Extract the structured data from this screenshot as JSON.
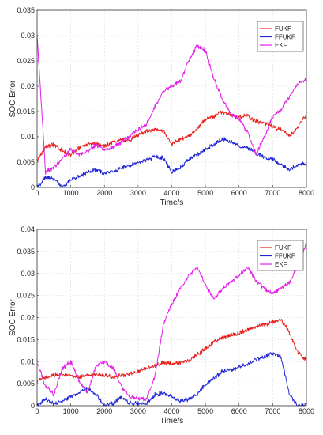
{
  "chart_data": [
    {
      "type": "line",
      "xlabel": "Time/s",
      "ylabel": "SOC Error",
      "xlim": [
        0,
        8000
      ],
      "ylim": [
        0,
        0.035
      ],
      "xticks": [
        "0",
        "1000",
        "2000",
        "3000",
        "4000",
        "5000",
        "6000",
        "7000",
        "8000"
      ],
      "yticks": [
        "0",
        "0.005",
        "0.01",
        "0.015",
        "0.02",
        "0.025",
        "0.03",
        "0.035"
      ],
      "grid": true,
      "legend": "top-right",
      "x": [
        0,
        250,
        500,
        750,
        1000,
        1250,
        1500,
        1750,
        2000,
        2250,
        2500,
        2750,
        3000,
        3250,
        3500,
        3750,
        4000,
        4250,
        4500,
        4750,
        5000,
        5250,
        5500,
        5750,
        6000,
        6250,
        6500,
        6750,
        7000,
        7250,
        7500,
        7750,
        8000
      ],
      "series": [
        {
          "name": "FUKF",
          "color": "#e8201c",
          "values": [
            0.0055,
            0.008,
            0.0085,
            0.0072,
            0.0065,
            0.0078,
            0.0085,
            0.0088,
            0.0082,
            0.009,
            0.0095,
            0.0092,
            0.0105,
            0.011,
            0.0115,
            0.0112,
            0.0085,
            0.0095,
            0.01,
            0.0115,
            0.0135,
            0.014,
            0.015,
            0.0143,
            0.0138,
            0.0142,
            0.013,
            0.0128,
            0.012,
            0.0115,
            0.01,
            0.012,
            0.0145
          ]
        },
        {
          "name": "FFUKF",
          "color": "#1f26d6",
          "values": [
            0.0,
            0.002,
            0.0018,
            0.0,
            0.0015,
            0.0022,
            0.003,
            0.0035,
            0.0028,
            0.0032,
            0.0038,
            0.0042,
            0.005,
            0.0055,
            0.006,
            0.0058,
            0.003,
            0.004,
            0.0055,
            0.0065,
            0.0075,
            0.0085,
            0.0095,
            0.009,
            0.0082,
            0.0078,
            0.0068,
            0.006,
            0.0055,
            0.0045,
            0.0035,
            0.0045,
            0.0048
          ]
        },
        {
          "name": "EKF",
          "color": "#e51ee8",
          "values": [
            0.03,
            0.003,
            0.004,
            0.0055,
            0.0075,
            0.0065,
            0.007,
            0.0085,
            0.0075,
            0.008,
            0.009,
            0.01,
            0.0115,
            0.0125,
            0.016,
            0.019,
            0.02,
            0.021,
            0.025,
            0.028,
            0.027,
            0.0215,
            0.0175,
            0.0145,
            0.0135,
            0.011,
            0.0065,
            0.01,
            0.014,
            0.0155,
            0.018,
            0.0205,
            0.0215
          ]
        }
      ]
    },
    {
      "type": "line",
      "xlabel": "Time/s",
      "ylabel": "SOC Error",
      "xlim": [
        0,
        8000
      ],
      "ylim": [
        0,
        0.04
      ],
      "xticks": [
        "0",
        "1000",
        "2000",
        "3000",
        "4000",
        "5000",
        "6000",
        "7000",
        "8000"
      ],
      "yticks": [
        "0",
        "0.005",
        "0.01",
        "0.015",
        "0.02",
        "0.025",
        "0.03",
        "0.035",
        "0.04"
      ],
      "grid": true,
      "legend": "top-right",
      "x": [
        0,
        250,
        500,
        750,
        1000,
        1250,
        1500,
        1750,
        2000,
        2250,
        2500,
        2750,
        3000,
        3250,
        3500,
        3750,
        4000,
        4250,
        4500,
        4750,
        5000,
        5250,
        5500,
        5750,
        6000,
        6250,
        6500,
        6750,
        7000,
        7250,
        7500,
        7750,
        8000
      ],
      "series": [
        {
          "name": "FUKF",
          "color": "#e8201c",
          "values": [
            0.0055,
            0.0065,
            0.007,
            0.0072,
            0.0068,
            0.0065,
            0.007,
            0.0072,
            0.0068,
            0.0066,
            0.007,
            0.0072,
            0.0078,
            0.0085,
            0.009,
            0.0098,
            0.0095,
            0.0098,
            0.0102,
            0.0115,
            0.013,
            0.0145,
            0.0155,
            0.016,
            0.0165,
            0.0172,
            0.0178,
            0.0185,
            0.019,
            0.0195,
            0.0165,
            0.012,
            0.0105
          ]
        },
        {
          "name": "FFUKF",
          "color": "#1f26d6",
          "values": [
            0.0,
            0.0015,
            0.0005,
            0.001,
            0.002,
            0.003,
            0.0042,
            0.0025,
            0.0,
            0.0005,
            0.002,
            0.0005,
            0.0005,
            0.0005,
            0.0025,
            0.0028,
            0.002,
            0.001,
            0.0015,
            0.0025,
            0.0048,
            0.0062,
            0.0078,
            0.0082,
            0.0088,
            0.0095,
            0.0105,
            0.011,
            0.012,
            0.011,
            0.0025,
            0.0,
            0.0005
          ]
        },
        {
          "name": "EKF",
          "color": "#e51ee8",
          "values": [
            0.01,
            0.0045,
            0.0025,
            0.0085,
            0.01,
            0.0055,
            0.003,
            0.009,
            0.01,
            0.0085,
            0.0045,
            0.002,
            0.0015,
            0.0015,
            0.0065,
            0.0185,
            0.023,
            0.0265,
            0.0295,
            0.0315,
            0.0275,
            0.024,
            0.0265,
            0.028,
            0.0295,
            0.0315,
            0.0285,
            0.0265,
            0.0255,
            0.0265,
            0.028,
            0.032,
            0.037
          ]
        }
      ]
    }
  ]
}
